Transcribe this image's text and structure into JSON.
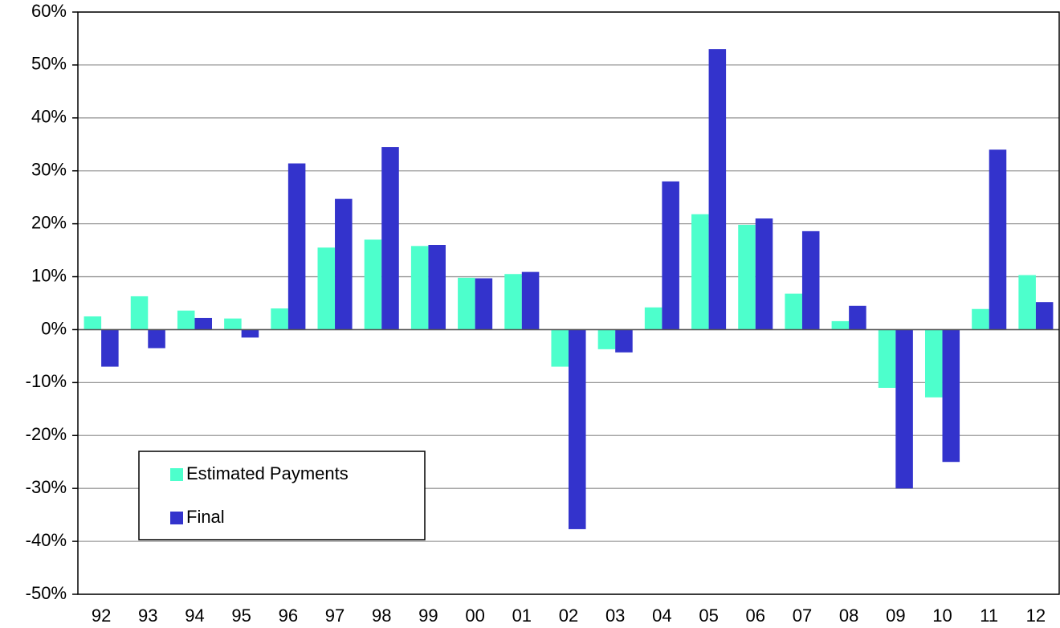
{
  "chart_data": {
    "type": "bar",
    "categories": [
      "92",
      "93",
      "94",
      "95",
      "96",
      "97",
      "98",
      "99",
      "00",
      "01",
      "02",
      "03",
      "04",
      "05",
      "06",
      "07",
      "08",
      "09",
      "10",
      "11",
      "12"
    ],
    "series": [
      {
        "name": "Estimated Payments",
        "color": "#4dffcc",
        "values": [
          2.5,
          6.3,
          3.6,
          2.1,
          4.0,
          15.5,
          17.0,
          15.8,
          9.8,
          10.5,
          -7.0,
          -3.7,
          4.2,
          21.8,
          19.8,
          6.8,
          1.6,
          -11.0,
          -12.8,
          3.9,
          10.3
        ]
      },
      {
        "name": "Final",
        "color": "#3333cc",
        "values": [
          -7.0,
          -3.5,
          2.2,
          -1.5,
          31.4,
          24.7,
          34.5,
          16.0,
          9.7,
          10.9,
          -37.7,
          -4.3,
          28.0,
          53.0,
          21.0,
          18.6,
          4.5,
          -30.0,
          -25.0,
          34.0,
          5.2
        ]
      }
    ],
    "ylim": [
      -50,
      60
    ],
    "yticks": [
      {
        "value": -50,
        "label": "-50%"
      },
      {
        "value": -40,
        "label": "-40%"
      },
      {
        "value": -30,
        "label": "-30%"
      },
      {
        "value": -20,
        "label": "-20%"
      },
      {
        "value": -10,
        "label": "-10%"
      },
      {
        "value": 0,
        "label": "0%"
      },
      {
        "value": 10,
        "label": "10%"
      },
      {
        "value": 20,
        "label": "20%"
      },
      {
        "value": 30,
        "label": "30%"
      },
      {
        "value": 40,
        "label": "40%"
      },
      {
        "value": 50,
        "label": "50%"
      },
      {
        "value": 60,
        "label": "60%"
      }
    ],
    "grid": true,
    "legend": "lower left"
  }
}
